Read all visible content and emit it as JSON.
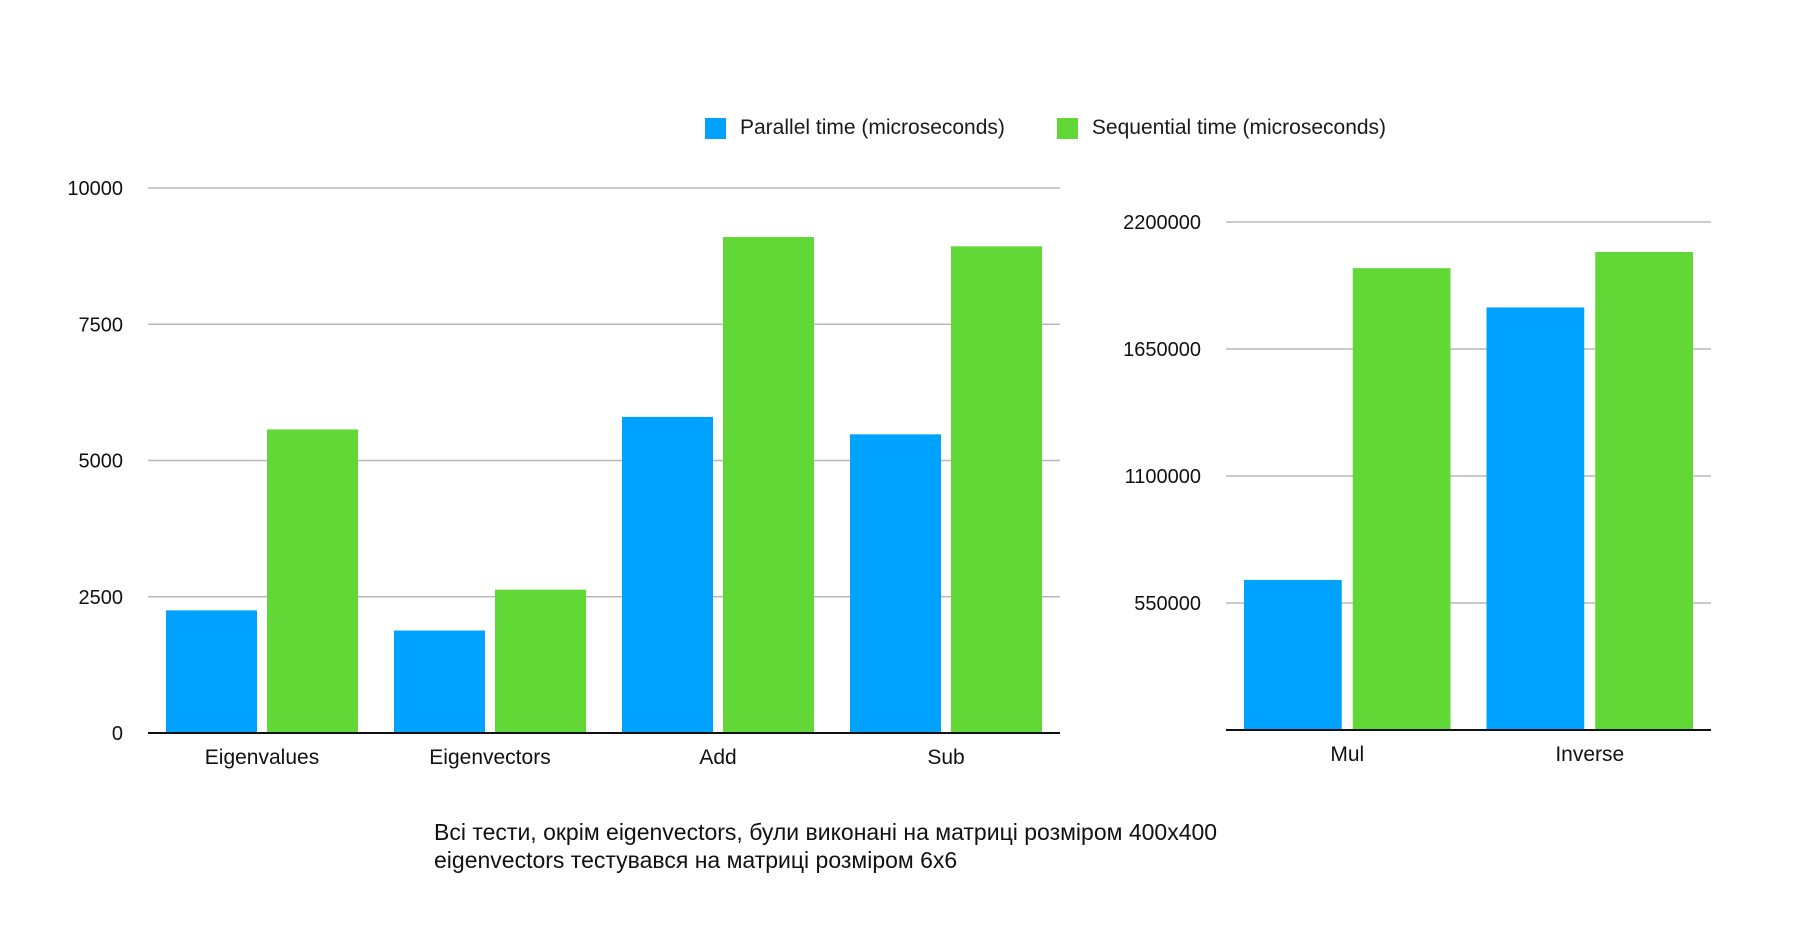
{
  "legend": {
    "parallel_label": "Parallel time (microseconds)",
    "sequential_label": "Sequential time (microseconds)"
  },
  "colors": {
    "parallel": "#00A2FF",
    "sequential": "#61D836",
    "grid": "#b8b8b8",
    "axis": "#111111"
  },
  "note": {
    "line1": "Всі тести, окрім eigenvectors, були виконані на матриці розміром 400x400",
    "line2": "eigenvectors тестувався на матриці розміром 6x6"
  },
  "chart_data": [
    {
      "type": "bar",
      "categories": [
        "Eigenvalues",
        "Eigenvectors",
        "Add",
        "Sub"
      ],
      "series": [
        {
          "name": "Parallel time (microseconds)",
          "values": [
            2250,
            1880,
            5800,
            5480
          ]
        },
        {
          "name": "Sequential time (microseconds)",
          "values": [
            5570,
            2630,
            9100,
            8930
          ]
        }
      ],
      "yticks": [
        "0",
        "2500",
        "5000",
        "7500",
        "10000"
      ],
      "ylim": [
        0,
        10000
      ],
      "grid": true
    },
    {
      "type": "bar",
      "categories": [
        "Mul",
        "Inverse"
      ],
      "series": [
        {
          "name": "Parallel time (microseconds)",
          "values": [
            650000,
            1830000
          ]
        },
        {
          "name": "Sequential time (microseconds)",
          "values": [
            2000000,
            2070000
          ]
        }
      ],
      "yticks": [
        "550000",
        "1100000",
        "1650000",
        "2200000"
      ],
      "ylim": [
        0,
        2200000
      ],
      "grid": true
    }
  ]
}
